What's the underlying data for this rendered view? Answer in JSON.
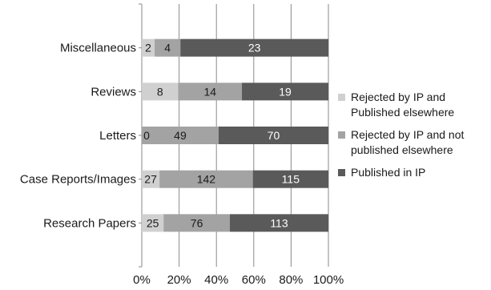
{
  "chart_data": {
    "type": "bar",
    "orientation": "horizontal",
    "stacking": "percent",
    "categories": [
      "Miscellaneous",
      "Reviews",
      "Letters",
      "Case Reports/Images",
      "Research Papers"
    ],
    "series": [
      {
        "name": "Rejected by IP and Published elsewhere",
        "values": [
          2,
          8,
          0,
          27,
          25
        ],
        "color": "#d0d0d0"
      },
      {
        "name": "Rejected by IP and not published elsewhere",
        "values": [
          4,
          14,
          49,
          142,
          76
        ],
        "color": "#a3a3a3"
      },
      {
        "name": "Published in IP",
        "values": [
          23,
          19,
          70,
          115,
          113
        ],
        "color": "#5a5a5a"
      }
    ],
    "x_ticks": [
      "0%",
      "20%",
      "40%",
      "60%",
      "80%",
      "100%"
    ],
    "xlim": [
      0,
      100
    ],
    "grid": true,
    "legend_position": "right",
    "title": "",
    "xlabel": "",
    "ylabel": ""
  }
}
